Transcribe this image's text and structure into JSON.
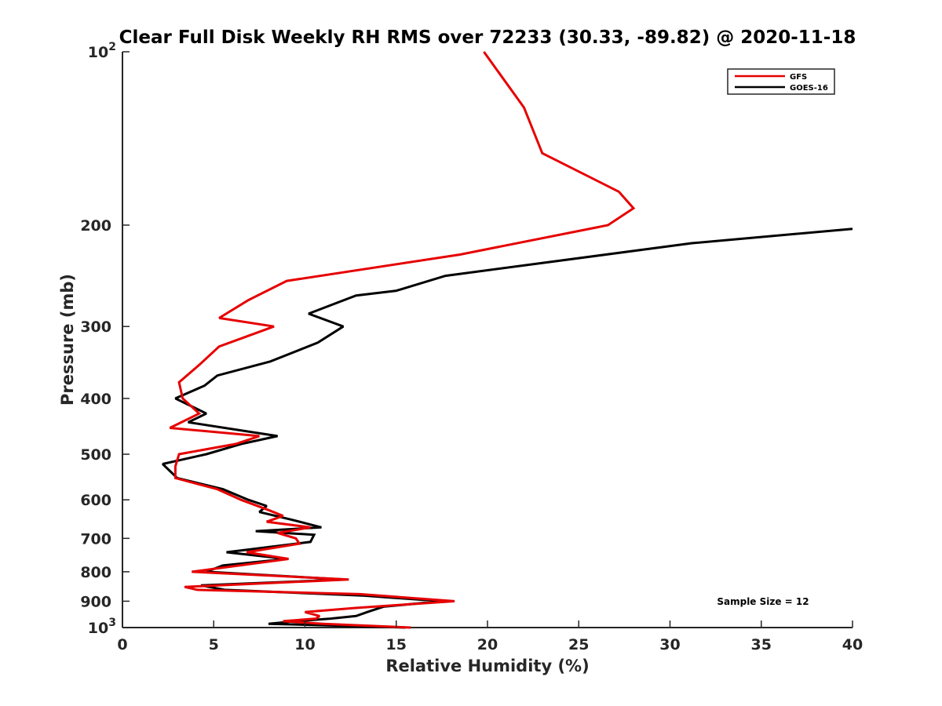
{
  "chart_data": {
    "type": "line",
    "title": "Clear Full Disk Weekly RH RMS over 72233 (30.33, -89.82) @ 2020-11-18",
    "xlabel": "Relative Humidity (%)",
    "ylabel": "Pressure (mb)",
    "xlim": [
      0,
      40
    ],
    "ylim": [
      100,
      1000
    ],
    "y_scale": "log",
    "y_reversed": true,
    "grid": false,
    "legend_position": "top-right",
    "x_ticks": [
      0,
      5,
      10,
      15,
      20,
      25,
      30,
      35,
      40
    ],
    "x_tick_labels": [
      "0",
      "5",
      "10",
      "15",
      "20",
      "25",
      "30",
      "35",
      "40"
    ],
    "y_ticks": [
      100,
      200,
      300,
      400,
      500,
      600,
      700,
      800,
      900,
      1000
    ],
    "y_tick_labels": [
      {
        "base": "10",
        "exp": "2"
      },
      {
        "base": "200",
        "exp": ""
      },
      {
        "base": "300",
        "exp": ""
      },
      {
        "base": "400",
        "exp": ""
      },
      {
        "base": "500",
        "exp": ""
      },
      {
        "base": "600",
        "exp": ""
      },
      {
        "base": "700",
        "exp": ""
      },
      {
        "base": "800",
        "exp": ""
      },
      {
        "base": "900",
        "exp": ""
      },
      {
        "base": "10",
        "exp": "3"
      }
    ],
    "annotation": "Sample Size = 12",
    "series": [
      {
        "name": "GFS",
        "color": "#e60000",
        "points": [
          [
            19.8,
            100
          ],
          [
            22.0,
            125
          ],
          [
            23.0,
            150
          ],
          [
            27.2,
            175
          ],
          [
            28.0,
            187
          ],
          [
            26.6,
            200
          ],
          [
            18.5,
            225
          ],
          [
            9.0,
            250
          ],
          [
            6.9,
            270
          ],
          [
            5.3,
            290
          ],
          [
            8.3,
            300
          ],
          [
            5.3,
            325
          ],
          [
            4.2,
            350
          ],
          [
            3.1,
            375
          ],
          [
            3.3,
            400
          ],
          [
            4.2,
            425
          ],
          [
            2.6,
            450
          ],
          [
            7.5,
            465
          ],
          [
            6.2,
            480
          ],
          [
            3.1,
            500
          ],
          [
            2.9,
            525
          ],
          [
            2.9,
            550
          ],
          [
            5.2,
            575
          ],
          [
            6.5,
            600
          ],
          [
            8.0,
            625
          ],
          [
            8.8,
            640
          ],
          [
            7.9,
            655
          ],
          [
            10.3,
            670
          ],
          [
            8.5,
            685
          ],
          [
            9.5,
            700
          ],
          [
            9.7,
            715
          ],
          [
            6.8,
            740
          ],
          [
            9.1,
            760
          ],
          [
            3.8,
            800
          ],
          [
            12.4,
            825
          ],
          [
            3.4,
            850
          ],
          [
            4.1,
            860
          ],
          [
            13.0,
            875
          ],
          [
            18.2,
            900
          ],
          [
            12.7,
            925
          ],
          [
            10.0,
            940
          ],
          [
            10.8,
            955
          ],
          [
            10.6,
            965
          ],
          [
            8.8,
            975
          ],
          [
            11.0,
            985
          ],
          [
            15.8,
            1000
          ]
        ]
      },
      {
        "name": "GOES-16",
        "color": "#000000",
        "points": [
          [
            40.0,
            203
          ],
          [
            31.2,
            215
          ],
          [
            17.7,
            245
          ],
          [
            15.0,
            260
          ],
          [
            12.8,
            265
          ],
          [
            10.2,
            285
          ],
          [
            12.1,
            300
          ],
          [
            10.7,
            320
          ],
          [
            8.1,
            345
          ],
          [
            5.2,
            365
          ],
          [
            4.5,
            380
          ],
          [
            2.9,
            400
          ],
          [
            4.6,
            425
          ],
          [
            3.6,
            440
          ],
          [
            8.5,
            465
          ],
          [
            6.5,
            480
          ],
          [
            4.6,
            500
          ],
          [
            2.2,
            520
          ],
          [
            3.0,
            550
          ],
          [
            5.5,
            575
          ],
          [
            6.9,
            600
          ],
          [
            7.9,
            615
          ],
          [
            7.5,
            630
          ],
          [
            9.3,
            650
          ],
          [
            10.9,
            670
          ],
          [
            7.3,
            680
          ],
          [
            10.5,
            690
          ],
          [
            10.3,
            710
          ],
          [
            5.7,
            740
          ],
          [
            9.0,
            760
          ],
          [
            5.5,
            780
          ],
          [
            4.6,
            800
          ],
          [
            12.2,
            825
          ],
          [
            4.3,
            845
          ],
          [
            5.6,
            860
          ],
          [
            13.2,
            880
          ],
          [
            17.5,
            900
          ],
          [
            14.3,
            920
          ],
          [
            13.4,
            940
          ],
          [
            12.8,
            955
          ],
          [
            11.4,
            965
          ],
          [
            9.5,
            975
          ],
          [
            8.0,
            985
          ],
          [
            15.5,
            1000
          ]
        ]
      }
    ]
  }
}
